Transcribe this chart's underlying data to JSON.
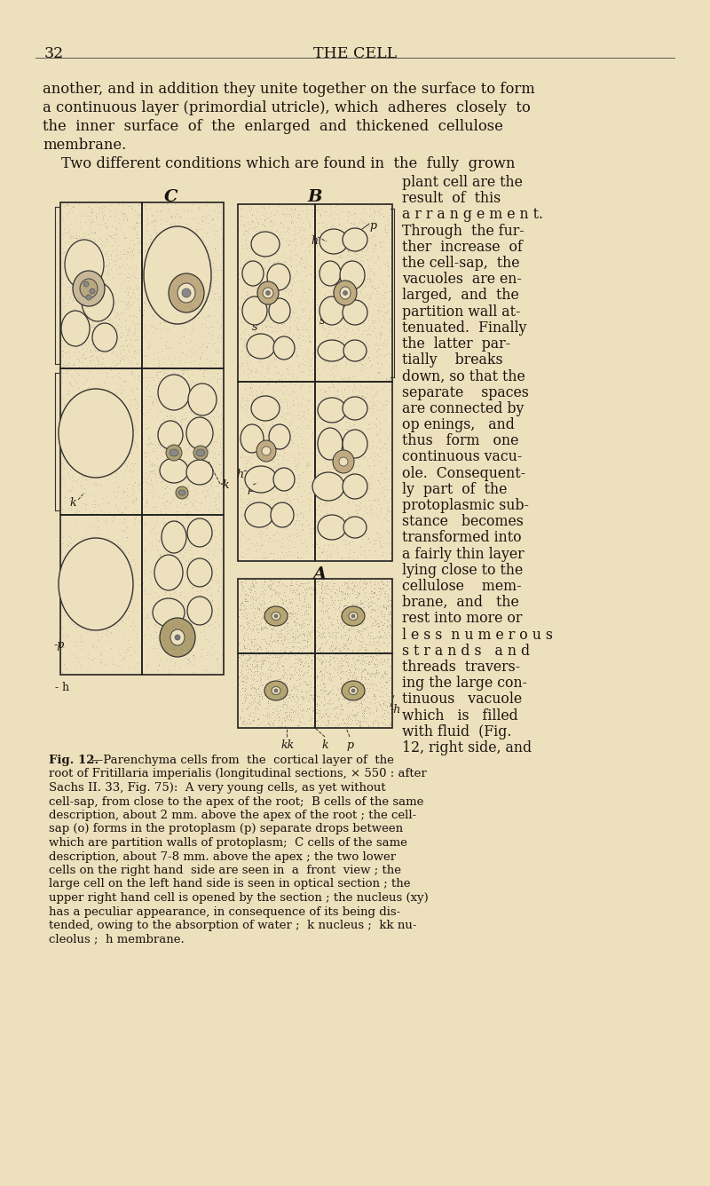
{
  "bg": "#ede0bc",
  "tc": "#1a1410",
  "page_num": "32",
  "header": "THE CELL",
  "para1": [
    "another, and in addition they unite together on the surface to form",
    "a continuous layer (primordial utricle), which  adheres  closely  to",
    "the  inner  surface  of  the  enlarged  and  thickened  cellulose",
    "membrane."
  ],
  "para2_full": "    Two different conditions which are found in  the  fully  grown",
  "right_col": [
    "plant cell are the",
    "result  of  this",
    "a r r a n g e m e n t.",
    "Through  the fur-",
    "ther  increase  of",
    "the cell-sap,  the",
    "vacuoles  are en-",
    "larged,  and  the",
    "partition wall at-",
    "tenuated.  Finally",
    "the  latter  par-",
    "tially    breaks",
    "down, so that the",
    "separate    spaces",
    "are connected by",
    "op enings,   and",
    "thus   form   one",
    "continuous vacu-",
    "ole.  Consequent-",
    "ly  part  of  the",
    "protoplasmic sub-",
    "stance   becomes",
    "transformed into",
    "a fairly thin layer",
    "lying close to the",
    "cellulose    mem-",
    "brane,  and   the",
    "rest into more or",
    "l e s s  n u m e r o u s",
    "s t r a n d s   a n d",
    "threads  travers-",
    "ing the large con-",
    "tinuous   vacuole",
    "which   is   filled",
    "with fluid  (Fig.",
    "12, right side, and"
  ],
  "cap_bold": "Fig. 12.",
  "cap_lines": [
    "—Parenchyma cells from  the  cortical layer of  the",
    "root of Fritillaria imperialis (longitudinal sections, × 550 : after",
    "Sachs II. 33, Fig. 75):  A very young cells, as yet without",
    "cell-sap, from close to the apex of the root;  B cells of the same",
    "description, about 2 mm. above the apex of the root ; the cell-",
    "sap (o) forms in the protoplasm (p) separate drops between",
    "which are partition walls of protoplasm;  C cells of the same",
    "description, about 7-8 mm. above the apex ; the two lower",
    "cells on the right hand  side are seen in  a  front  view ; the",
    "large cell on the left hand side is seen in optical section ; the",
    "upper right hand cell is opened by the section ; the nucleus (xy)",
    "has a peculiar appearance, in consequence of its being dis-",
    "tended, owing to the absorption of water ;  k nucleus ;  kk nu-",
    "cleolus ;  h membrane."
  ]
}
